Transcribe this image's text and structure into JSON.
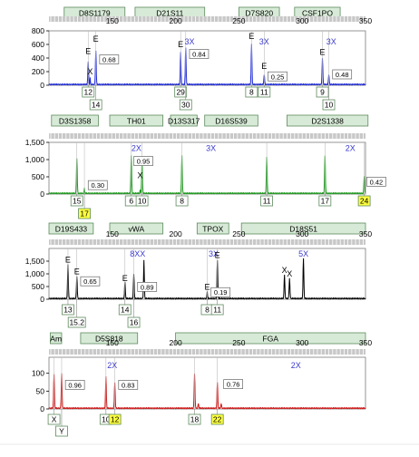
{
  "chart_data": [
    {
      "type": "line",
      "color": "#1e2ad6",
      "x_ticks": [
        "150",
        "200",
        "250",
        "300",
        "350"
      ],
      "y_ticks": [
        "800",
        "600",
        "400",
        "200",
        "0"
      ],
      "xlim": [
        100,
        350
      ],
      "ylim": [
        0,
        800
      ],
      "loci": [
        {
          "label": "D8S1179",
          "from": 112,
          "to": 160
        },
        {
          "label": "D21S11",
          "from": 168,
          "to": 223
        },
        {
          "label": "D7S820",
          "from": 250,
          "to": 282
        },
        {
          "label": "CSF1PO",
          "from": 294,
          "to": 330
        }
      ],
      "peaks": [
        {
          "x": 131,
          "height": 330,
          "width": 0.8
        },
        {
          "x": 132.5,
          "height": 100,
          "width": 0.5
        },
        {
          "x": 137,
          "height": 500,
          "width": 0.8
        },
        {
          "x": 204,
          "height": 470,
          "width": 0.8
        },
        {
          "x": 208,
          "height": 540,
          "width": 0.8
        },
        {
          "x": 260,
          "height": 590,
          "width": 0.8
        },
        {
          "x": 270,
          "height": 140,
          "width": 0.8
        },
        {
          "x": 316,
          "height": 380,
          "width": 0.8
        },
        {
          "x": 321,
          "height": 140,
          "width": 0.8
        }
      ],
      "markers": [
        {
          "text": "E",
          "x": 131,
          "y": 460,
          "color": "#000000"
        },
        {
          "text": "E",
          "x": 137,
          "y": 640,
          "color": "#000000"
        },
        {
          "text": "X",
          "x": 132.5,
          "y": 160,
          "color": "#000000"
        },
        {
          "text": "3X",
          "x": 211,
          "y": 600,
          "color": "#3a3acc"
        },
        {
          "text": "E",
          "x": 204,
          "y": 560,
          "color": "#000000"
        },
        {
          "text": "E",
          "x": 260,
          "y": 680,
          "color": "#000000"
        },
        {
          "text": "3X",
          "x": 270,
          "y": 600,
          "color": "#3a3acc"
        },
        {
          "text": "E",
          "x": 270,
          "y": 240,
          "color": "#000000"
        },
        {
          "text": "3X",
          "x": 323,
          "y": 600,
          "color": "#3a3acc"
        },
        {
          "text": "E",
          "x": 316,
          "y": 450,
          "color": "#000000"
        }
      ],
      "ratio_boxes": [
        {
          "text": "0.68",
          "x": 140,
          "y": 340
        },
        {
          "text": "0.84",
          "x": 211,
          "y": 420
        },
        {
          "text": "0.25",
          "x": 273,
          "y": 90
        },
        {
          "text": "0.48",
          "x": 324,
          "y": 120
        }
      ],
      "alleles": [
        {
          "text": "12",
          "x": 131,
          "row": 0,
          "highlight": false
        },
        {
          "text": "14",
          "x": 137,
          "row": 1,
          "highlight": false
        },
        {
          "text": "29",
          "x": 204,
          "row": 0,
          "highlight": false
        },
        {
          "text": "30",
          "x": 208,
          "row": 1,
          "highlight": false
        },
        {
          "text": "8",
          "x": 260,
          "row": 0,
          "highlight": false
        },
        {
          "text": "11",
          "x": 270,
          "row": 0,
          "highlight": false
        },
        {
          "text": "9",
          "x": 316,
          "row": 0,
          "highlight": false
        },
        {
          "text": "10",
          "x": 321,
          "row": 1,
          "highlight": false
        }
      ]
    },
    {
      "type": "line",
      "color": "#1a9a1a",
      "x_ticks": [],
      "y_ticks": [
        "1,500",
        "1,000",
        "500",
        "0"
      ],
      "xlim": [
        100,
        350
      ],
      "ylim": [
        0,
        1500
      ],
      "loci": [
        {
          "label": "D3S1358",
          "from": 102,
          "to": 139
        },
        {
          "label": "TH01",
          "from": 148,
          "to": 190
        },
        {
          "label": "D13S317",
          "from": 196,
          "to": 217
        },
        {
          "label": "D16S539",
          "from": 223,
          "to": 265
        },
        {
          "label": "D2S1338",
          "from": 288,
          "to": 352
        }
      ],
      "peaks": [
        {
          "x": 122,
          "height": 1020,
          "width": 0.8
        },
        {
          "x": 128,
          "height": 150,
          "width": 0.6
        },
        {
          "x": 165,
          "height": 1090,
          "width": 0.8
        },
        {
          "x": 172,
          "height": 100,
          "width": 0.5
        },
        {
          "x": 173.5,
          "height": 960,
          "width": 0.8
        },
        {
          "x": 205,
          "height": 1100,
          "width": 0.8
        },
        {
          "x": 272,
          "height": 1050,
          "width": 0.8
        },
        {
          "x": 318,
          "height": 1090,
          "width": 0.8
        },
        {
          "x": 349,
          "height": 500,
          "width": 0.8
        }
      ],
      "markers": [
        {
          "text": "2X",
          "x": 169,
          "y": 1250,
          "color": "#3a3acc"
        },
        {
          "text": "X",
          "x": 172,
          "y": 460,
          "color": "#000000"
        },
        {
          "text": "3X",
          "x": 228,
          "y": 1250,
          "color": "#3a3acc"
        },
        {
          "text": "2X",
          "x": 338,
          "y": 1250,
          "color": "#3a3acc"
        }
      ],
      "ratio_boxes": [
        {
          "text": "0.30",
          "x": 131,
          "y": 180
        },
        {
          "text": "0.95",
          "x": 167,
          "y": 880
        },
        {
          "text": "0.42",
          "x": 351,
          "y": 280
        }
      ],
      "alleles": [
        {
          "text": "15",
          "x": 122,
          "row": 0,
          "highlight": false
        },
        {
          "text": "17",
          "x": 128,
          "row": 1,
          "highlight": true
        },
        {
          "text": "6",
          "x": 165,
          "row": 0,
          "highlight": false
        },
        {
          "text": "10",
          "x": 173.5,
          "row": 0,
          "highlight": false
        },
        {
          "text": "8",
          "x": 205,
          "row": 0,
          "highlight": false
        },
        {
          "text": "11",
          "x": 272,
          "row": 0,
          "highlight": false
        },
        {
          "text": "17",
          "x": 318,
          "row": 0,
          "highlight": false
        },
        {
          "text": "24",
          "x": 349,
          "row": 0,
          "highlight": true
        }
      ]
    },
    {
      "type": "line",
      "color": "#000000",
      "x_ticks": [
        "150",
        "200",
        "250",
        "300",
        "350"
      ],
      "y_ticks": [
        "1,500",
        "1,000",
        "500",
        "0"
      ],
      "xlim": [
        100,
        350
      ],
      "ylim": [
        0,
        2000
      ],
      "loci": [
        {
          "label": "D19S433",
          "from": 100,
          "to": 135
        },
        {
          "label": "vWA",
          "from": 148,
          "to": 190
        },
        {
          "label": "TPOX",
          "from": 217,
          "to": 242
        },
        {
          "label": "D18S51",
          "from": 252,
          "to": 350
        }
      ],
      "peaks": [
        {
          "x": 115,
          "height": 1350,
          "width": 0.8
        },
        {
          "x": 122,
          "height": 880,
          "width": 0.8
        },
        {
          "x": 160,
          "height": 650,
          "width": 0.8
        },
        {
          "x": 167,
          "height": 950,
          "width": 0.8
        },
        {
          "x": 175,
          "height": 1500,
          "width": 0.8
        },
        {
          "x": 225,
          "height": 280,
          "width": 0.6
        },
        {
          "x": 233,
          "height": 1500,
          "width": 0.8
        },
        {
          "x": 286,
          "height": 920,
          "width": 0.8
        },
        {
          "x": 290,
          "height": 800,
          "width": 0.8
        },
        {
          "x": 301,
          "height": 1580,
          "width": 0.8
        }
      ],
      "markers": [
        {
          "text": "E",
          "x": 115,
          "y": 1450,
          "color": "#000000"
        },
        {
          "text": "E",
          "x": 122,
          "y": 980,
          "color": "#000000"
        },
        {
          "text": "8XX",
          "x": 170,
          "y": 1680,
          "color": "#3a3acc"
        },
        {
          "text": "E",
          "x": 160,
          "y": 720,
          "color": "#000000"
        },
        {
          "text": "3X",
          "x": 230,
          "y": 1680,
          "color": "#3a3acc"
        },
        {
          "text": "E",
          "x": 225,
          "y": 380,
          "color": "#000000"
        },
        {
          "text": "E",
          "x": 233,
          "y": 1620,
          "color": "#000000"
        },
        {
          "text": "5X",
          "x": 301,
          "y": 1680,
          "color": "#3a3acc"
        },
        {
          "text": "X",
          "x": 286,
          "y": 1030,
          "color": "#000000"
        },
        {
          "text": "X",
          "x": 290,
          "y": 900,
          "color": "#000000"
        }
      ],
      "ratio_boxes": [
        {
          "text": "0.65",
          "x": 125,
          "y": 600
        },
        {
          "text": "0.89",
          "x": 170,
          "y": 380
        },
        {
          "text": "0.19",
          "x": 228,
          "y": 170
        }
      ],
      "alleles": [
        {
          "text": "13",
          "x": 115,
          "row": 0,
          "highlight": false
        },
        {
          "text": "15.2",
          "x": 122,
          "row": 1,
          "highlight": false
        },
        {
          "text": "14",
          "x": 160,
          "row": 0,
          "highlight": false
        },
        {
          "text": "16",
          "x": 167,
          "row": 1,
          "highlight": false
        },
        {
          "text": "8",
          "x": 225,
          "row": 0,
          "highlight": false
        },
        {
          "text": "11",
          "x": 233,
          "row": 0,
          "highlight": false
        }
      ]
    },
    {
      "type": "line",
      "color": "#d11414",
      "x_ticks": [
        "150",
        "200",
        "250",
        "300",
        "350"
      ],
      "y_ticks": [
        "100",
        "50",
        "0"
      ],
      "xlim": [
        100,
        350
      ],
      "ylim": [
        0,
        145
      ],
      "loci": [
        {
          "label": "Am",
          "from": 101,
          "to": 110
        },
        {
          "label": "D5S818",
          "from": 125,
          "to": 170
        },
        {
          "label": "FGA",
          "from": 200,
          "to": 350
        }
      ],
      "peaks": [
        {
          "x": 104,
          "height": 95,
          "width": 0.8
        },
        {
          "x": 110,
          "height": 98,
          "width": 0.8
        },
        {
          "x": 145,
          "height": 88,
          "width": 0.8
        },
        {
          "x": 152,
          "height": 72,
          "width": 0.8
        },
        {
          "x": 215,
          "height": 98,
          "width": 0.8
        },
        {
          "x": 218,
          "height": 12,
          "width": 0.8
        },
        {
          "x": 233,
          "height": 72,
          "width": 0.8
        },
        {
          "x": 236,
          "height": 12,
          "width": 0.8
        }
      ],
      "markers": [
        {
          "text": "2X",
          "x": 150,
          "y": 114,
          "color": "#3a3acc"
        },
        {
          "text": "2X",
          "x": 295,
          "y": 114,
          "color": "#3a3acc"
        }
      ],
      "ratio_boxes": [
        {
          "text": "0.96",
          "x": 113,
          "y": 60
        },
        {
          "text": "0.83",
          "x": 155,
          "y": 60
        },
        {
          "text": "0.76",
          "x": 238,
          "y": 62
        }
      ],
      "alleles": [
        {
          "text": "X",
          "x": 104,
          "row": 0,
          "highlight": false
        },
        {
          "text": "Y",
          "x": 110,
          "row": 1,
          "highlight": false
        },
        {
          "text": "10",
          "x": 145,
          "row": 0,
          "highlight": false
        },
        {
          "text": "12",
          "x": 152,
          "row": 0,
          "highlight": true
        },
        {
          "text": "18",
          "x": 215,
          "row": 0,
          "highlight": false
        },
        {
          "text": "22",
          "x": 233,
          "row": 0,
          "highlight": true
        }
      ]
    }
  ]
}
